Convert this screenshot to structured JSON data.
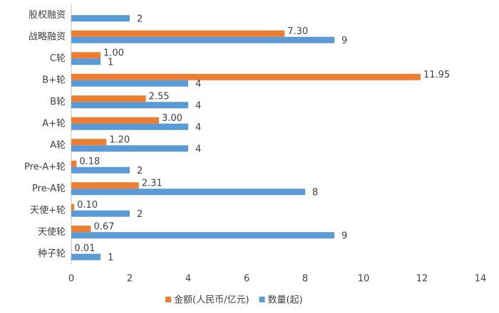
{
  "chart_data": {
    "type": "hbar",
    "categories": [
      "股权融资",
      "战略融资",
      "C轮",
      "B+轮",
      "B轮",
      "A+轮",
      "A轮",
      "Pre-A+轮",
      "Pre-A轮",
      "天使+轮",
      "天使轮",
      "种子轮"
    ],
    "series": [
      {
        "name": "金额(人民币/亿元)",
        "color": "#ed7d31",
        "values": [
          null,
          7.3,
          1.0,
          11.95,
          2.55,
          3.0,
          1.2,
          0.18,
          2.31,
          0.1,
          0.67,
          0.01
        ],
        "value_labels": [
          null,
          "7.30",
          "1.00",
          "11.95",
          "2.55",
          "3.00",
          "1.20",
          "0.18",
          "2.31",
          "0.10",
          "0.67",
          "0.01"
        ]
      },
      {
        "name": "数量(起)",
        "color": "#5b9bd5",
        "values": [
          2,
          9,
          1,
          4,
          4,
          4,
          4,
          2,
          8,
          2,
          9,
          1
        ]
      }
    ],
    "xlim": [
      0,
      14
    ],
    "xticks": [
      0,
      2,
      4,
      6,
      8,
      10,
      12,
      14
    ],
    "legend": "bottom"
  }
}
